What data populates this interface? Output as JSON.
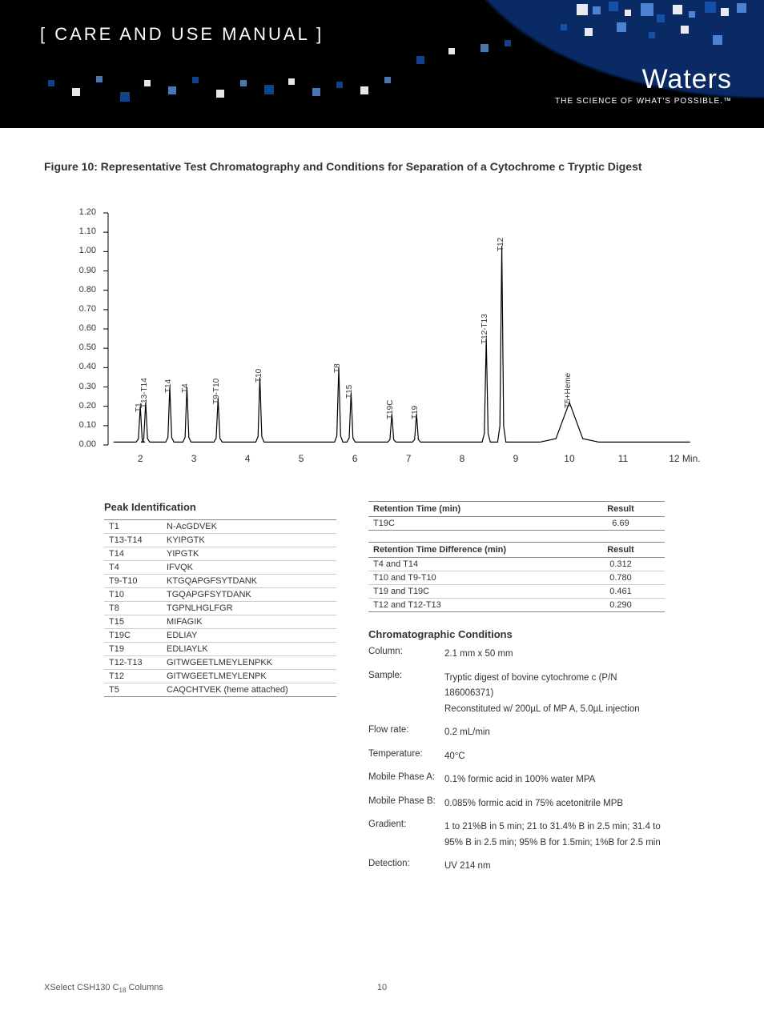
{
  "header": {
    "title": "[ CARE AND USE MANUAL ]",
    "brand": "Waters",
    "tagline": "THE SCIENCE OF WHAT'S POSSIBLE.™"
  },
  "figure_title": "Figure 10:  Representative Test Chromatography and Conditions for Separation of a Cytochrome c Tryptic Digest",
  "chart": {
    "type": "line",
    "ylim": [
      0.0,
      1.2
    ],
    "ytick_step": 0.1,
    "yticks": [
      "0.00",
      "0.10",
      "0.20",
      "0.30",
      "0.40",
      "0.50",
      "0.60",
      "0.70",
      "0.80",
      "0.90",
      "1.00",
      "1.10",
      "1.20"
    ],
    "xlim": [
      1.4,
      12.3
    ],
    "xticks": [
      "2",
      "3",
      "4",
      "5",
      "6",
      "7",
      "8",
      "9",
      "10",
      "11",
      "12"
    ],
    "xaxis_suffix": "Min.",
    "line_color": "#000000",
    "background_color": "#ffffff",
    "peaks": [
      {
        "x": 2.0,
        "h": 0.2,
        "label": "T1"
      },
      {
        "x": 2.1,
        "h": 0.22,
        "label": "T13-T14"
      },
      {
        "x": 2.55,
        "h": 0.3,
        "label": "T14"
      },
      {
        "x": 2.87,
        "h": 0.3,
        "label": "T4"
      },
      {
        "x": 3.45,
        "h": 0.24,
        "label": "T9-T10"
      },
      {
        "x": 4.23,
        "h": 0.35,
        "label": "T10"
      },
      {
        "x": 5.7,
        "h": 0.4,
        "label": "T8"
      },
      {
        "x": 5.93,
        "h": 0.27,
        "label": "T15"
      },
      {
        "x": 6.69,
        "h": 0.16,
        "label": "T19C"
      },
      {
        "x": 7.15,
        "h": 0.16,
        "label": "T19"
      },
      {
        "x": 8.45,
        "h": 0.55,
        "label": "T12-T13"
      },
      {
        "x": 8.74,
        "h": 1.03,
        "label": "T12"
      },
      {
        "x": 10.0,
        "h": 0.22,
        "label": "T5+Heme",
        "wide": true
      }
    ]
  },
  "peak_id": {
    "heading": "Peak Identification",
    "rows": [
      [
        "T1",
        "N-AcGDVEK"
      ],
      [
        "T13-T14",
        "KYIPGTK"
      ],
      [
        "T14",
        "YIPGTK"
      ],
      [
        "T4",
        "IFVQK"
      ],
      [
        "T9-T10",
        "KTGQAPGFSYTDANK"
      ],
      [
        "T10",
        "TGQAPGFSYTDANK"
      ],
      [
        "T8",
        "TGPNLHGLFGR"
      ],
      [
        "T15",
        "MIFAGIK"
      ],
      [
        "T19C",
        "EDLIAY"
      ],
      [
        "T19",
        "EDLIAYLK"
      ],
      [
        "T12-T13",
        "GITWGEETLMEYLENPKK"
      ],
      [
        "T12",
        "GITWGEETLMEYLENPK"
      ],
      [
        "T5",
        "CAQCHTVEK (heme attached)"
      ]
    ]
  },
  "rt_table": {
    "headers": [
      "Retention Time (min)",
      "Result"
    ],
    "rows": [
      [
        "T19C",
        "6.69"
      ]
    ]
  },
  "rtd_table": {
    "headers": [
      "Retention Time Difference (min)",
      "Result"
    ],
    "rows": [
      [
        "T4   and T14",
        "0.312"
      ],
      [
        "T10 and T9-T10",
        "0.780"
      ],
      [
        "T19 and T19C",
        "0.461"
      ],
      [
        "T12 and T12-T13",
        "0.290"
      ]
    ]
  },
  "conditions": {
    "heading": "Chromatographic Conditions",
    "items": [
      {
        "label": "Column:",
        "value": "2.1 mm x 50 mm"
      },
      {
        "label": "Sample:",
        "value": "Tryptic digest of bovine cytochrome c (P/N 186006371)\n Reconstituted w/ 200µL of MP A, 5.0µL injection"
      },
      {
        "label": "Flow rate:",
        "value": "0.2 mL/min"
      },
      {
        "label": "Temperature:",
        "value": "40°C"
      },
      {
        "label": "Mobile Phase A:",
        "value": "0.1% formic acid in 100% water MPA"
      },
      {
        "label": "Mobile Phase B:",
        "value": "0.085% formic acid in 75% acetonitrile MPB"
      },
      {
        "label": "Gradient:",
        "value": "1 to 21%B in 5 min; 21 to 31.4% B in 2.5 min; 31.4 to 95% B in 2.5 min; 95% B for 1.5min; 1%B for 2.5 min"
      },
      {
        "label": "Detection:",
        "value": "UV 214 nm"
      }
    ]
  },
  "footer": {
    "product": "XSelect CSH130 C",
    "sub": "18",
    "product2": " Columns",
    "page": "10"
  }
}
